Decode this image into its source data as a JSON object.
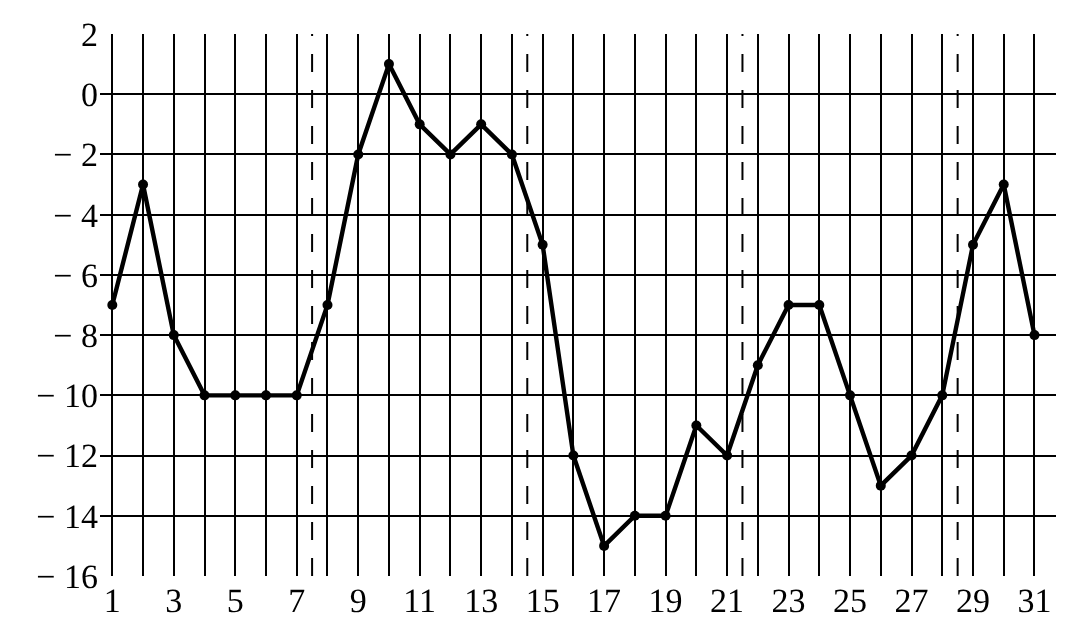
{
  "chart_data": {
    "type": "line",
    "x": [
      1,
      2,
      3,
      4,
      5,
      6,
      7,
      8,
      9,
      10,
      11,
      12,
      13,
      14,
      15,
      16,
      17,
      18,
      19,
      20,
      21,
      22,
      23,
      24,
      25,
      26,
      27,
      28,
      29,
      30,
      31
    ],
    "series": [
      {
        "color": "#000000",
        "values": [
          -7,
          -3,
          -8,
          -10,
          -10,
          -10,
          -10,
          -7,
          -2,
          1,
          -1,
          -2,
          -1,
          -2,
          -5,
          -12,
          -15,
          -14,
          -14,
          -11,
          -12,
          -9,
          -7,
          -7,
          -10,
          -13,
          -12,
          -10,
          -5,
          -3,
          -8
        ]
      }
    ],
    "xlim": [
      0.6,
      31.7
    ],
    "xticks": [
      1,
      {
        "value": 2,
        "label": null
      },
      3,
      {
        "value": 4,
        "label": null
      },
      5,
      {
        "value": 6,
        "label": null
      },
      7,
      {
        "value": 8,
        "label": null
      },
      9,
      {
        "value": 10,
        "label": null
      },
      11,
      {
        "value": 12,
        "label": null
      },
      13,
      {
        "value": 14,
        "label": null
      },
      15,
      {
        "value": 16,
        "label": null
      },
      17,
      {
        "value": 18,
        "label": null
      },
      19,
      {
        "value": 20,
        "label": null
      },
      21,
      {
        "value": 22,
        "label": null
      },
      23,
      {
        "value": 24,
        "label": null
      },
      25,
      {
        "value": 26,
        "label": null
      },
      27,
      {
        "value": 28,
        "label": null
      },
      29,
      {
        "value": 30,
        "label": null
      },
      31
    ],
    "ylim": [
      -16,
      2
    ],
    "yticks": [
      -16,
      -14,
      -12,
      -10,
      -8,
      -6,
      -4,
      -2,
      0,
      2
    ],
    "ref_lines": [
      {
        "axis": "x",
        "value": 7.5,
        "line_style": "dashed",
        "color": "#000000"
      },
      {
        "axis": "x",
        "value": 14.5,
        "line_style": "dashed",
        "color": "#000000"
      },
      {
        "axis": "x",
        "value": 21.5,
        "line_style": "dashed",
        "color": "#000000"
      },
      {
        "axis": "x",
        "value": 28.5,
        "line_style": "dashed",
        "color": "#000000"
      }
    ],
    "grid": true,
    "marker": "circle",
    "line_style": "solid",
    "legend": false
  }
}
